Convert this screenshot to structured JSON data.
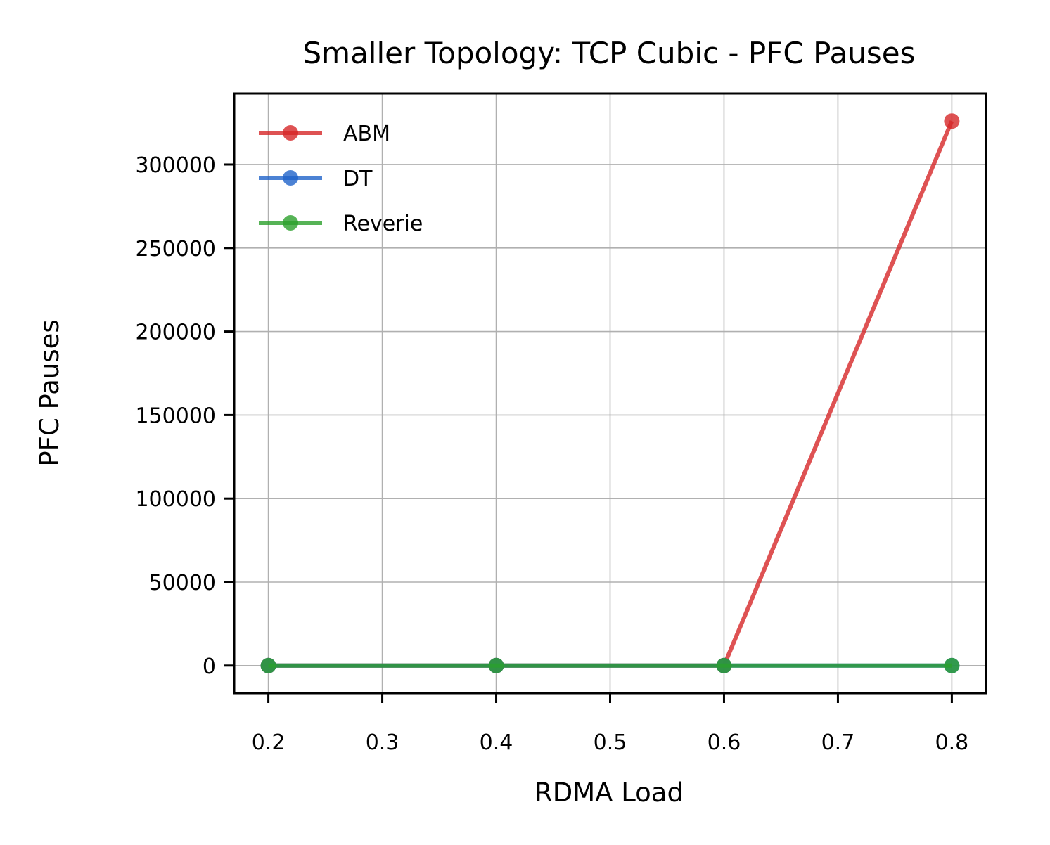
{
  "chart_data": {
    "type": "line",
    "title": "Smaller Topology: TCP Cubic - PFC Pauses",
    "xlabel": "RDMA Load",
    "ylabel": "PFC Pauses",
    "x": [
      0.2,
      0.4,
      0.6,
      0.8
    ],
    "xlim": [
      0.17,
      0.83
    ],
    "ylim": [
      -16500,
      342500
    ],
    "xticks": [
      0.2,
      0.3,
      0.4,
      0.5,
      0.6,
      0.7,
      0.8
    ],
    "xtick_labels": [
      "0.2",
      "0.3",
      "0.4",
      "0.5",
      "0.6",
      "0.7",
      "0.8"
    ],
    "yticks": [
      0,
      50000,
      100000,
      150000,
      200000,
      250000,
      300000
    ],
    "ytick_labels": [
      "0",
      "50000",
      "100000",
      "150000",
      "200000",
      "250000",
      "300000"
    ],
    "grid": true,
    "legend_position": "upper-left",
    "series": [
      {
        "name": "ABM",
        "color": "#d62728",
        "values": [
          0,
          0,
          0,
          326000
        ]
      },
      {
        "name": "DT",
        "color": "#1f63c9",
        "values": [
          0,
          0,
          0,
          0
        ]
      },
      {
        "name": "Reverie",
        "color": "#2ca02c",
        "values": [
          0,
          0,
          0,
          0
        ]
      }
    ]
  }
}
